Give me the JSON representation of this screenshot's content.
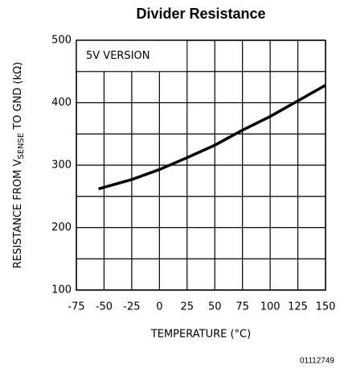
{
  "chart_data": {
    "type": "line",
    "title": "Divider Resistance",
    "y_label": [
      "RESISTANCE FROM V",
      "SENSE",
      " TO GND (kΩ)"
    ],
    "x_label": "TEMPERATURE (°C)",
    "annotation": "5V VERSION",
    "figure_id": "01112749",
    "x": [
      -55,
      -25,
      0,
      25,
      50,
      75,
      100,
      125,
      150
    ],
    "series": [
      {
        "name": "5V VERSION",
        "color": "#000000",
        "values": [
          262,
          277,
          293,
          312,
          332,
          356,
          378,
          403,
          428
        ]
      }
    ],
    "xlim": [
      -75,
      150
    ],
    "xticks": [
      -75,
      -50,
      -25,
      0,
      25,
      50,
      75,
      100,
      125,
      150
    ],
    "ylim": [
      100,
      500
    ],
    "yticks": [
      100,
      200,
      300,
      400,
      500
    ],
    "yminor": [
      150,
      250,
      350,
      450
    ],
    "grid": true
  }
}
